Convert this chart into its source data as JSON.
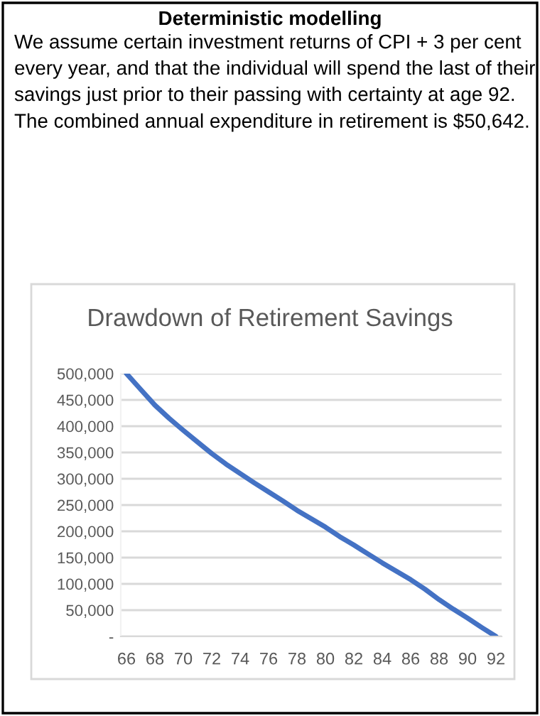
{
  "chart_data": {
    "type": "line",
    "title": "Drawdown of Retirement Savings",
    "annotations": [
      "Deterministic modelling",
      "We assume certain investment returns of CPI + 3 per cent every year, and that the individual will spend the last of their savings just prior to their passing with certainty at age 92. The combined annual expenditure in retirement is $50,642."
    ],
    "categories": [
      "66",
      null,
      "68",
      null,
      "70",
      null,
      "72",
      null,
      "74",
      null,
      "76",
      null,
      "78",
      null,
      "80",
      null,
      "82",
      null,
      "84",
      null,
      "86",
      null,
      "88",
      null,
      "90",
      null,
      "92"
    ],
    "series": [
      {
        "color": "#4472c4",
        "values": [
          500000,
          470000,
          440000,
          415000,
          392000,
          370000,
          348000,
          328000,
          310000,
          292000,
          275000,
          258000,
          240000,
          224000,
          208000,
          190000,
          174000,
          157000,
          140000,
          124000,
          108000,
          90000,
          70000,
          52000,
          35000,
          17000,
          0
        ]
      }
    ],
    "ylim": [
      0,
      500000
    ],
    "yticks": [
      {
        "value": 0,
        "label": "-"
      },
      {
        "value": 50000,
        "label": "50,000"
      },
      {
        "value": 100000,
        "label": "100,000"
      },
      {
        "value": 150000,
        "label": "150,000"
      },
      {
        "value": 200000,
        "label": "200,000"
      },
      {
        "value": 250000,
        "label": "250,000"
      },
      {
        "value": 300000,
        "label": "300,000"
      },
      {
        "value": 350000,
        "label": "350,000"
      },
      {
        "value": 400000,
        "label": "400,000"
      },
      {
        "value": 450000,
        "label": "450,000"
      },
      {
        "value": 500000,
        "label": "500,000"
      }
    ],
    "grid": "y",
    "marker": "none",
    "line_style": "solid"
  }
}
